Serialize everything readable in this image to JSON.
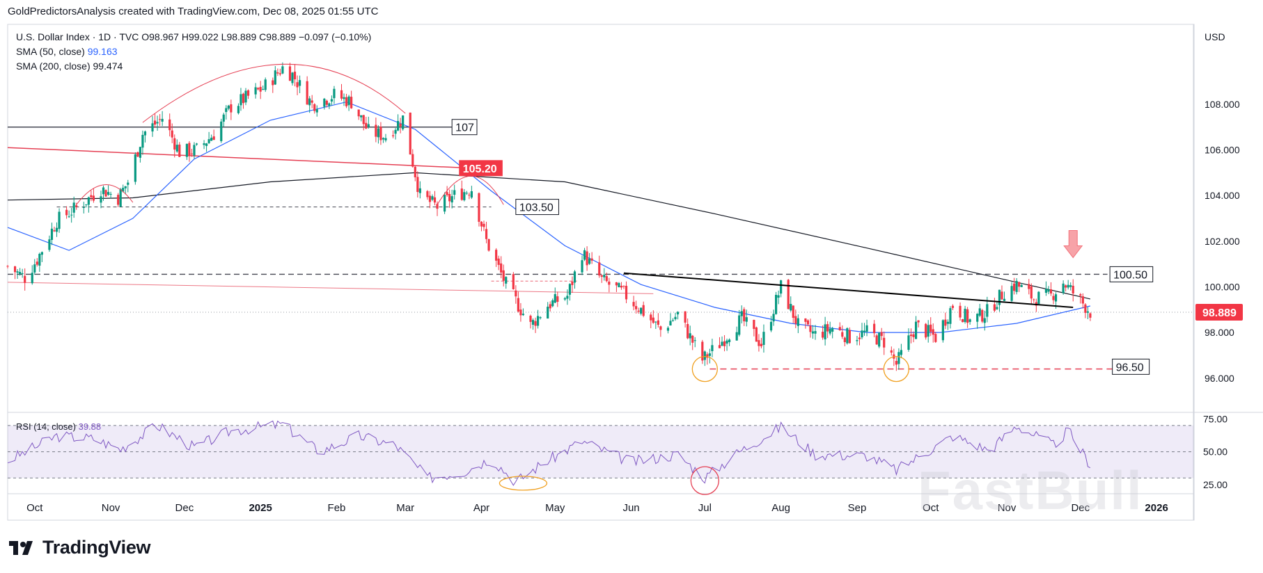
{
  "header": {
    "byline": "GoldPredictorsAnalysis created with TradingView.com, Dec 08, 2025 01:55 UTC"
  },
  "legend": {
    "symbol": "U.S. Dollar Index · 1D · TVC",
    "ohlc": "O98.967  H99.022  L98.889  C98.889  −0.097 (−0.10%)",
    "sma50_label": "SMA (50, close)",
    "sma50_value": "99.163",
    "sma200_label": "SMA (200, close)",
    "sma200_value": "99.474"
  },
  "axis": {
    "currency": "USD"
  },
  "watermark": "FastBull",
  "brand": {
    "name": "TradingView"
  },
  "chart_data": [
    {
      "type": "candlestick",
      "title": "U.S. Dollar Index · 1D · TVC",
      "ylim": [
        94.5,
        111.5
      ],
      "y_ticks": [
        "108.000",
        "106.000",
        "104.000",
        "102.000",
        "100.000",
        "98.000",
        "96.000"
      ],
      "x_ticks": [
        "Oct",
        "Nov",
        "Dec",
        "2025",
        "Feb",
        "Mar",
        "Apr",
        "May",
        "Jun",
        "Jul",
        "Aug",
        "Sep",
        "Oct",
        "Nov",
        "Dec",
        "2026"
      ],
      "last_price_label": "98.889",
      "level_labels": [
        "107",
        "105.20",
        "103.50",
        "100.50",
        "96.50"
      ],
      "close_path": [
        {
          "date": "2024-09-20",
          "close": 100.9
        },
        {
          "date": "2024-09-27",
          "close": 100.4
        },
        {
          "date": "2024-10-02",
          "close": 101.2
        },
        {
          "date": "2024-10-10",
          "close": 102.9
        },
        {
          "date": "2024-10-20",
          "close": 103.6
        },
        {
          "date": "2024-10-28",
          "close": 104.3
        },
        {
          "date": "2024-11-04",
          "close": 103.9
        },
        {
          "date": "2024-11-08",
          "close": 104.6
        },
        {
          "date": "2024-11-14",
          "close": 106.7
        },
        {
          "date": "2024-11-22",
          "close": 107.4
        },
        {
          "date": "2024-11-29",
          "close": 105.9
        },
        {
          "date": "2024-12-06",
          "close": 106.0
        },
        {
          "date": "2024-12-13",
          "close": 106.7
        },
        {
          "date": "2024-12-20",
          "close": 107.9
        },
        {
          "date": "2025-01-02",
          "close": 108.7
        },
        {
          "date": "2025-01-10",
          "close": 109.6
        },
        {
          "date": "2025-01-14",
          "close": 109.3
        },
        {
          "date": "2025-01-22",
          "close": 108.0
        },
        {
          "date": "2025-01-31",
          "close": 108.4
        },
        {
          "date": "2025-02-07",
          "close": 108.1
        },
        {
          "date": "2025-02-14",
          "close": 106.8
        },
        {
          "date": "2025-02-21",
          "close": 106.6
        },
        {
          "date": "2025-02-28",
          "close": 107.4
        },
        {
          "date": "2025-03-07",
          "close": 104.0
        },
        {
          "date": "2025-03-14",
          "close": 103.5
        },
        {
          "date": "2025-03-21",
          "close": 104.0
        },
        {
          "date": "2025-03-28",
          "close": 104.3
        },
        {
          "date": "2025-04-03",
          "close": 102.0
        },
        {
          "date": "2025-04-11",
          "close": 100.1
        },
        {
          "date": "2025-04-21",
          "close": 98.3
        },
        {
          "date": "2025-04-28",
          "close": 99.2
        },
        {
          "date": "2025-05-06",
          "close": 99.6
        },
        {
          "date": "2025-05-12",
          "close": 101.5
        },
        {
          "date": "2025-05-20",
          "close": 100.3
        },
        {
          "date": "2025-05-29",
          "close": 99.7
        },
        {
          "date": "2025-06-05",
          "close": 99.0
        },
        {
          "date": "2025-06-13",
          "close": 98.1
        },
        {
          "date": "2025-06-20",
          "close": 98.8
        },
        {
          "date": "2025-06-30",
          "close": 96.8
        },
        {
          "date": "2025-07-07",
          "close": 97.5
        },
        {
          "date": "2025-07-16",
          "close": 98.6
        },
        {
          "date": "2025-07-24",
          "close": 97.5
        },
        {
          "date": "2025-08-01",
          "close": 100.0
        },
        {
          "date": "2025-08-08",
          "close": 98.3
        },
        {
          "date": "2025-08-15",
          "close": 97.9
        },
        {
          "date": "2025-08-22",
          "close": 98.2
        },
        {
          "date": "2025-08-29",
          "close": 97.8
        },
        {
          "date": "2025-09-05",
          "close": 98.0
        },
        {
          "date": "2025-09-12",
          "close": 97.6
        },
        {
          "date": "2025-09-17",
          "close": 96.6
        },
        {
          "date": "2025-09-25",
          "close": 98.3
        },
        {
          "date": "2025-10-03",
          "close": 97.8
        },
        {
          "date": "2025-10-10",
          "close": 99.2
        },
        {
          "date": "2025-10-17",
          "close": 98.5
        },
        {
          "date": "2025-10-24",
          "close": 98.9
        },
        {
          "date": "2025-10-31",
          "close": 99.8
        },
        {
          "date": "2025-11-05",
          "close": 100.1
        },
        {
          "date": "2025-11-12",
          "close": 99.5
        },
        {
          "date": "2025-11-19",
          "close": 99.6
        },
        {
          "date": "2025-11-24",
          "close": 100.2
        },
        {
          "date": "2025-12-01",
          "close": 99.4
        },
        {
          "date": "2025-12-05",
          "close": 98.9
        }
      ],
      "sma50": [
        {
          "date": "2024-09-20",
          "value": 102.6
        },
        {
          "date": "2024-10-15",
          "value": 101.6
        },
        {
          "date": "2024-11-10",
          "value": 103.0
        },
        {
          "date": "2024-12-05",
          "value": 105.6
        },
        {
          "date": "2025-01-05",
          "value": 107.3
        },
        {
          "date": "2025-02-05",
          "value": 108.1
        },
        {
          "date": "2025-03-05",
          "value": 106.9
        },
        {
          "date": "2025-04-05",
          "value": 104.2
        },
        {
          "date": "2025-05-05",
          "value": 101.8
        },
        {
          "date": "2025-06-05",
          "value": 100.1
        },
        {
          "date": "2025-07-05",
          "value": 99.1
        },
        {
          "date": "2025-08-05",
          "value": 98.4
        },
        {
          "date": "2025-09-05",
          "value": 98.0
        },
        {
          "date": "2025-10-05",
          "value": 98.0
        },
        {
          "date": "2025-11-05",
          "value": 98.4
        },
        {
          "date": "2025-12-05",
          "value": 99.16
        }
      ],
      "sma200": [
        {
          "date": "2024-09-20",
          "value": 103.8
        },
        {
          "date": "2024-11-10",
          "value": 103.9
        },
        {
          "date": "2025-01-05",
          "value": 104.6
        },
        {
          "date": "2025-03-05",
          "value": 105.0
        },
        {
          "date": "2025-05-05",
          "value": 104.6
        },
        {
          "date": "2025-07-05",
          "value": 103.2
        },
        {
          "date": "2025-09-05",
          "value": 101.7
        },
        {
          "date": "2025-11-05",
          "value": 100.2
        },
        {
          "date": "2025-12-05",
          "value": 99.47
        }
      ]
    },
    {
      "type": "line",
      "title": "RSI (14, close)",
      "value_label": "39.88",
      "ylim": [
        18,
        80
      ],
      "y_ticks": [
        "75.00",
        "50.00",
        "25.00"
      ],
      "series": [
        {
          "date": "2024-09-20",
          "value": 43
        },
        {
          "date": "2024-10-10",
          "value": 62
        },
        {
          "date": "2024-10-25",
          "value": 60
        },
        {
          "date": "2024-11-05",
          "value": 52
        },
        {
          "date": "2024-11-20",
          "value": 70
        },
        {
          "date": "2024-12-05",
          "value": 53
        },
        {
          "date": "2024-12-20",
          "value": 66
        },
        {
          "date": "2025-01-10",
          "value": 71
        },
        {
          "date": "2025-01-25",
          "value": 50
        },
        {
          "date": "2025-02-10",
          "value": 62
        },
        {
          "date": "2025-02-25",
          "value": 55
        },
        {
          "date": "2025-03-10",
          "value": 30
        },
        {
          "date": "2025-03-25",
          "value": 35
        },
        {
          "date": "2025-04-05",
          "value": 45
        },
        {
          "date": "2025-04-15",
          "value": 27
        },
        {
          "date": "2025-04-25",
          "value": 40
        },
        {
          "date": "2025-05-12",
          "value": 58
        },
        {
          "date": "2025-06-01",
          "value": 42
        },
        {
          "date": "2025-06-20",
          "value": 48
        },
        {
          "date": "2025-07-01",
          "value": 30
        },
        {
          "date": "2025-07-15",
          "value": 50
        },
        {
          "date": "2025-08-01",
          "value": 69
        },
        {
          "date": "2025-08-15",
          "value": 48
        },
        {
          "date": "2025-09-05",
          "value": 47
        },
        {
          "date": "2025-09-17",
          "value": 36
        },
        {
          "date": "2025-10-10",
          "value": 62
        },
        {
          "date": "2025-10-25",
          "value": 51
        },
        {
          "date": "2025-11-05",
          "value": 70
        },
        {
          "date": "2025-11-20",
          "value": 55
        },
        {
          "date": "2025-11-26",
          "value": 66
        },
        {
          "date": "2025-12-05",
          "value": 40
        }
      ]
    }
  ],
  "colors": {
    "up": "#089981",
    "down": "#f23645",
    "sma50": "#2962ff",
    "sma200": "#131722",
    "rsi": "#7e57c2",
    "rsi_band": "rgba(126,87,194,0.12)",
    "red_line": "#e53e52"
  }
}
